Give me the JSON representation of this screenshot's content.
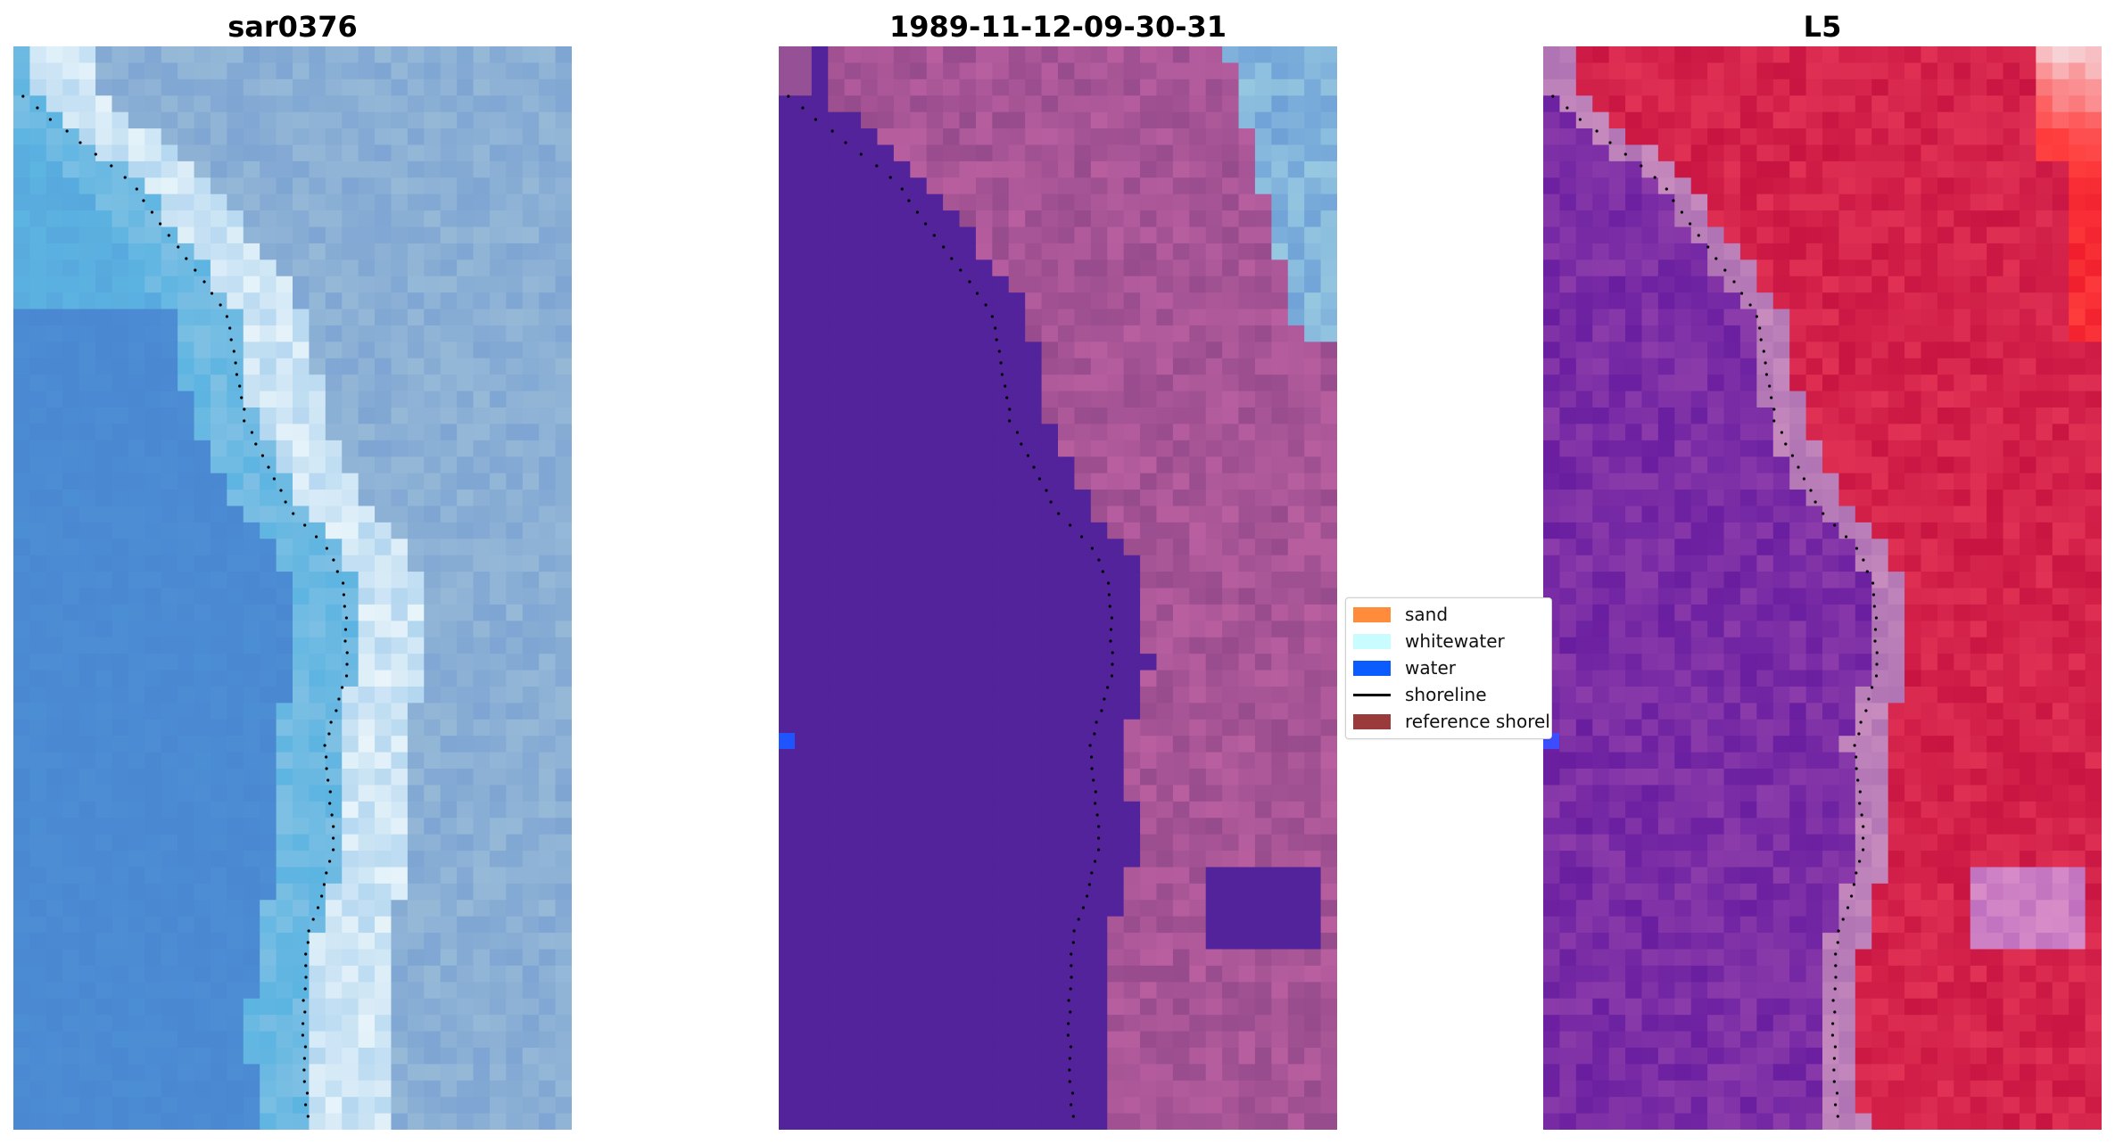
{
  "panels": [
    {
      "title": "sar0376",
      "variant": "rgb"
    },
    {
      "title": "1989-11-12-09-30-31",
      "variant": "classified"
    },
    {
      "title": "L5",
      "variant": "mndwi"
    }
  ],
  "legend": {
    "items": [
      {
        "label": "sand",
        "type": "patch",
        "color": "#ff8c3a"
      },
      {
        "label": "whitewater",
        "type": "patch",
        "color": "#c8fcff"
      },
      {
        "label": "water",
        "type": "patch",
        "color": "#0a5cff"
      },
      {
        "label": "shoreline",
        "type": "line",
        "color": "#000000"
      },
      {
        "label": "reference shoreline",
        "type": "patch",
        "color": "#9b3a3a"
      }
    ]
  },
  "colors": {
    "water_class": "#52239a",
    "classified_land": "#9c4d8e",
    "shoreline_points": "#000000",
    "marker": "#1e55ff"
  }
}
